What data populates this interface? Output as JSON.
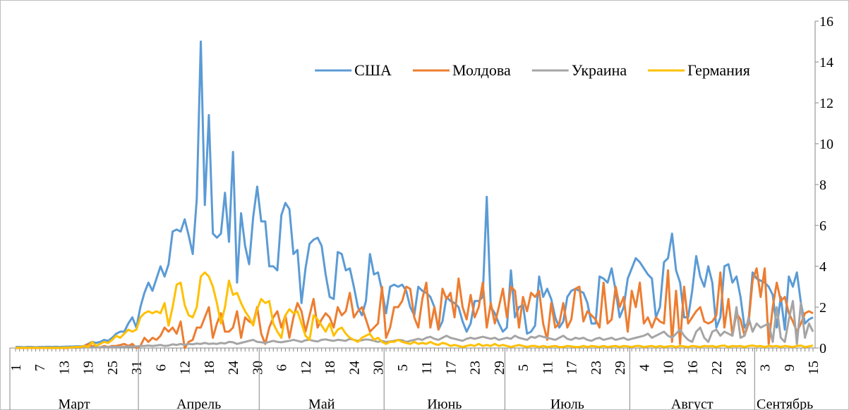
{
  "chart_data": {
    "type": "line",
    "months": [
      {
        "name": "Март",
        "days": [
          "1",
          null,
          null,
          null,
          null,
          null,
          "7",
          null,
          null,
          null,
          null,
          null,
          "13",
          null,
          null,
          null,
          null,
          null,
          "19",
          null,
          null,
          null,
          null,
          null,
          "25",
          null,
          null,
          null,
          null,
          null,
          "31"
        ]
      },
      {
        "name": "Апрель",
        "days": [
          null,
          null,
          null,
          null,
          null,
          "6",
          null,
          null,
          null,
          null,
          null,
          "12",
          null,
          null,
          null,
          null,
          null,
          "18",
          null,
          null,
          null,
          null,
          null,
          "24",
          null,
          null,
          null,
          null,
          null,
          "30"
        ]
      },
      {
        "name": "Май",
        "days": [
          null,
          null,
          null,
          null,
          null,
          "6",
          null,
          null,
          null,
          null,
          null,
          "12",
          null,
          null,
          null,
          null,
          null,
          "18",
          null,
          null,
          null,
          null,
          null,
          "24",
          null,
          null,
          null,
          null,
          null,
          "30",
          null
        ]
      },
      {
        "name": "Июнь",
        "days": [
          null,
          null,
          null,
          null,
          "5",
          null,
          null,
          null,
          null,
          null,
          "11",
          null,
          null,
          null,
          null,
          null,
          "17",
          null,
          null,
          null,
          null,
          null,
          "23",
          null,
          null,
          null,
          null,
          null,
          "29",
          null
        ]
      },
      {
        "name": "Июль",
        "days": [
          null,
          null,
          null,
          null,
          "5",
          null,
          null,
          null,
          null,
          null,
          "11",
          null,
          null,
          null,
          null,
          null,
          "17",
          null,
          null,
          null,
          null,
          null,
          "23",
          null,
          null,
          null,
          null,
          null,
          "29",
          null,
          null
        ]
      },
      {
        "name": "Август",
        "days": [
          null,
          null,
          null,
          "4",
          null,
          null,
          null,
          null,
          null,
          "10",
          null,
          null,
          null,
          null,
          null,
          "16",
          null,
          null,
          null,
          null,
          null,
          "22",
          null,
          null,
          null,
          null,
          null,
          "28",
          null,
          null,
          null
        ]
      },
      {
        "name": "Сентябрь",
        "days": [
          null,
          null,
          "3",
          null,
          null,
          null,
          null,
          null,
          "9",
          null,
          null,
          null,
          null,
          null,
          "15"
        ]
      }
    ],
    "series": [
      {
        "name": "США",
        "color": "#5b9bd5",
        "values": [
          0.05,
          0.05,
          0.04,
          0.05,
          0.05,
          0.04,
          0.05,
          0.05,
          0.06,
          0.05,
          0.06,
          0.05,
          0.06,
          0.07,
          0.07,
          0.08,
          0.08,
          0.1,
          0.2,
          0.3,
          0.25,
          0.3,
          0.4,
          0.35,
          0.5,
          0.7,
          0.8,
          0.8,
          1.2,
          1.5,
          1.0,
          2.0,
          2.7,
          3.2,
          2.8,
          3.4,
          4.0,
          3.5,
          4.1,
          5.7,
          5.8,
          5.7,
          6.3,
          5.5,
          4.6,
          7.3,
          15.0,
          7.0,
          11.4,
          5.6,
          5.4,
          5.6,
          7.6,
          5.2,
          9.6,
          3.2,
          6.6,
          5.0,
          4.1,
          6.4,
          7.9,
          6.2,
          6.2,
          4.0,
          4.0,
          3.8,
          6.5,
          7.1,
          6.8,
          4.6,
          4.8,
          2.2,
          3.9,
          5.1,
          5.3,
          5.4,
          5.0,
          3.6,
          2.5,
          2.4,
          4.7,
          4.6,
          3.8,
          3.9,
          3.0,
          2.0,
          1.6,
          2.3,
          4.6,
          3.6,
          3.7,
          2.8,
          1.7,
          3.0,
          3.1,
          3.0,
          3.1,
          2.8,
          2.0,
          1.6,
          3.0,
          2.8,
          2.7,
          2.5,
          2.0,
          0.9,
          1.3,
          2.5,
          2.3,
          2.2,
          2.0,
          1.3,
          0.8,
          1.2,
          2.3,
          2.3,
          2.5,
          7.4,
          2.0,
          1.7,
          1.2,
          0.8,
          1.0,
          3.8,
          1.5,
          2.0,
          2.1,
          0.7,
          0.8,
          1.1,
          3.5,
          2.5,
          2.9,
          2.4,
          1.5,
          1.0,
          1.3,
          2.5,
          2.8,
          2.9,
          2.8,
          2.7,
          2.2,
          1.2,
          1.2,
          3.5,
          3.4,
          3.2,
          3.9,
          2.8,
          1.5,
          2.0,
          3.4,
          3.9,
          4.4,
          4.2,
          3.9,
          3.6,
          3.4,
          1.5,
          2.0,
          4.2,
          4.4,
          5.6,
          3.8,
          3.2,
          1.5,
          1.5,
          2.8,
          4.5,
          3.5,
          3.0,
          4.0,
          3.2,
          1.0,
          1.5,
          4.0,
          4.1,
          3.2,
          3.5,
          2.5,
          1.0,
          1.3,
          3.7,
          3.4,
          3.3,
          3.2,
          3.0,
          2.6,
          1.0,
          2.5,
          0.9,
          3.5,
          3.0,
          3.7,
          2.2,
          1.2,
          1.4,
          1.5
        ]
      },
      {
        "name": "Молдова",
        "color": "#ed7d31",
        "values": [
          0,
          0,
          0,
          0,
          0.01,
          0,
          0,
          0.01,
          0,
          0,
          0,
          0.01,
          0,
          0,
          0.02,
          0.01,
          0.02,
          0.05,
          0.2,
          0.1,
          0.05,
          0.02,
          0.1,
          0.05,
          0.1,
          0.1,
          0.15,
          0.2,
          0.1,
          0.2,
          0.0,
          0.1,
          0.5,
          0.3,
          0.5,
          0.4,
          0.6,
          1.0,
          0.8,
          1.0,
          0.7,
          1.3,
          0.0,
          0.3,
          0.4,
          1.0,
          1.0,
          1.5,
          2.0,
          0.5,
          1.2,
          1.7,
          0.8,
          0.8,
          1.0,
          1.8,
          0.5,
          1.5,
          1.3,
          1.2,
          2.0,
          0.7,
          0.2,
          1.0,
          1.5,
          1.8,
          1.0,
          1.6,
          0.5,
          1.5,
          2.2,
          1.8,
          0.8,
          1.6,
          2.4,
          1.0,
          1.4,
          1.7,
          1.5,
          1.0,
          2.0,
          1.6,
          1.8,
          2.7,
          1.5,
          1.8,
          2.0,
          1.4,
          0.8,
          1.0,
          1.2,
          3.0,
          0.5,
          1.0,
          2.0,
          2.0,
          2.3,
          3.0,
          2.9,
          1.5,
          1.0,
          2.4,
          3.2,
          1.0,
          2.0,
          0.9,
          2.9,
          2.4,
          2.7,
          1.5,
          3.4,
          2.0,
          1.4,
          2.6,
          1.5,
          2.0,
          3.2,
          1.0,
          2.2,
          1.2,
          2.0,
          2.9,
          1.5,
          3.0,
          2.8,
          1.0,
          2.5,
          1.8,
          2.7,
          2.5,
          2.8,
          1.2,
          0.4,
          2.2,
          1.0,
          1.2,
          2.2,
          1.0,
          1.4,
          2.9,
          3.0,
          1.3,
          1.8,
          1.6,
          1.4,
          1.0,
          3.2,
          1.2,
          1.4,
          3.0,
          2.0,
          2.5,
          0.8,
          2.8,
          2.0,
          3.2,
          1.2,
          1.5,
          1.0,
          1.5,
          1.3,
          1.2,
          3.8,
          0.3,
          2.8,
          0.2,
          3.0,
          1.2,
          1.5,
          1.8,
          2.0,
          1.3,
          1.2,
          1.3,
          1.6,
          3.7,
          1.0,
          2.4,
          0.6,
          1.7,
          1.4,
          0.6,
          1.2,
          3.3,
          3.9,
          2.5,
          3.9,
          0.2,
          2.0,
          3.2,
          2.3,
          2.5,
          1.7,
          1.3,
          0.8,
          1.2,
          1.7,
          1.8,
          1.7
        ]
      },
      {
        "name": "Украина",
        "color": "#a5a5a5",
        "values": [
          0.02,
          0.02,
          0.02,
          0.02,
          0.02,
          0.02,
          0.02,
          0.02,
          0.02,
          0.02,
          0.02,
          0.02,
          0.02,
          0.02,
          0.02,
          0.02,
          0.02,
          0.03,
          0.03,
          0.03,
          0.03,
          0.04,
          0.04,
          0.05,
          0.05,
          0.05,
          0.06,
          0.06,
          0.07,
          0.07,
          0.08,
          0.1,
          0.1,
          0.12,
          0.1,
          0.12,
          0.15,
          0.1,
          0.12,
          0.18,
          0.15,
          0.2,
          0.15,
          0.2,
          0.18,
          0.22,
          0.2,
          0.25,
          0.2,
          0.22,
          0.2,
          0.25,
          0.22,
          0.3,
          0.28,
          0.2,
          0.25,
          0.3,
          0.35,
          0.4,
          0.3,
          0.28,
          0.25,
          0.3,
          0.35,
          0.3,
          0.28,
          0.32,
          0.35,
          0.4,
          0.35,
          0.3,
          0.38,
          0.4,
          0.35,
          0.32,
          0.4,
          0.42,
          0.38,
          0.35,
          0.4,
          0.38,
          0.35,
          0.45,
          0.4,
          0.35,
          0.38,
          0.42,
          0.4,
          0.35,
          0.3,
          0.35,
          0.3,
          0.32,
          0.35,
          0.4,
          0.38,
          0.3,
          0.35,
          0.4,
          0.45,
          0.4,
          0.5,
          0.55,
          0.45,
          0.4,
          0.5,
          0.6,
          0.5,
          0.45,
          0.4,
          0.35,
          0.45,
          0.5,
          0.45,
          0.5,
          0.55,
          0.5,
          0.45,
          0.5,
          0.4,
          0.45,
          0.5,
          0.45,
          0.6,
          0.5,
          0.45,
          0.4,
          0.55,
          0.5,
          0.6,
          0.55,
          0.5,
          0.45,
          0.4,
          0.5,
          0.6,
          0.45,
          0.4,
          0.5,
          0.45,
          0.5,
          0.4,
          0.35,
          0.45,
          0.5,
          0.4,
          0.45,
          0.5,
          0.4,
          0.45,
          0.5,
          0.4,
          0.45,
          0.5,
          0.55,
          0.6,
          0.7,
          0.5,
          0.6,
          0.7,
          0.8,
          0.6,
          0.5,
          0.7,
          0.9,
          0.6,
          0.4,
          0.3,
          0.8,
          1.0,
          0.5,
          0.3,
          0.8,
          0.9,
          0.6,
          0.8,
          0.7,
          0.6,
          2.0,
          0.5,
          0.6,
          1.5,
          0.8,
          1.2,
          1.0,
          1.1,
          1.2,
          0.3,
          2.0,
          0.5,
          0.3,
          1.4,
          2.3,
          0.2,
          2.2,
          0.5,
          1.2,
          0.8
        ]
      },
      {
        "name": "Германия",
        "color": "#ffc000",
        "values": [
          0.01,
          0.01,
          0.01,
          0.01,
          0.01,
          0.01,
          0.01,
          0.01,
          0.01,
          0.01,
          0.01,
          0.01,
          0.02,
          0.02,
          0.03,
          0.05,
          0.05,
          0.1,
          0.05,
          0.3,
          0.1,
          0.2,
          0.3,
          0.25,
          0.4,
          0.6,
          0.5,
          0.7,
          0.9,
          0.8,
          0.9,
          1.5,
          1.7,
          1.8,
          1.7,
          1.8,
          1.7,
          2.2,
          1.1,
          2.0,
          3.1,
          3.2,
          2.1,
          1.6,
          1.5,
          2.0,
          3.5,
          3.7,
          3.5,
          3.0,
          2.2,
          1.2,
          2.0,
          3.3,
          2.6,
          2.7,
          2.2,
          1.8,
          1.5,
          1.1,
          1.9,
          2.4,
          2.2,
          2.3,
          1.2,
          0.8,
          0.5,
          1.6,
          1.9,
          1.7,
          1.8,
          1.2,
          0.6,
          0.4,
          1.6,
          1.4,
          1.1,
          0.8,
          1.2,
          0.6,
          0.9,
          1.0,
          0.7,
          0.5,
          0.4,
          0.3,
          0.5,
          0.6,
          0.7,
          0.4,
          0.5,
          0.3,
          0.2,
          0.3,
          0.3,
          0.4,
          0.3,
          0.25,
          0.2,
          0.3,
          0.2,
          0.25,
          0.2,
          0.3,
          0.2,
          0.15,
          0.25,
          0.2,
          0.1,
          0.15,
          0.1,
          0.05,
          0.1,
          0.15,
          0.1,
          0.2,
          0.1,
          0.15,
          0.1,
          0.2,
          0.1,
          0.15,
          0.1,
          0.05,
          0.1,
          0.15,
          0.1,
          0.05,
          0.1,
          0.1,
          0.05,
          0.1,
          0.05,
          0.08,
          0.1,
          0.05,
          0.05,
          0.1,
          0.08,
          0.05,
          0.05,
          0.1,
          0.05,
          0.1,
          0.08,
          0.05,
          0.1,
          0.05,
          0.08,
          0.1,
          0.05,
          0.1,
          0.08,
          0.05,
          0.1,
          0.1,
          0.05,
          0.08,
          0.1,
          0.05,
          0.1,
          0.05,
          0.08,
          0.1,
          0.05,
          0.1,
          0.08,
          0.05,
          0.1,
          0.08,
          0.05,
          0.1,
          0.08,
          0.1,
          0.05,
          0.1,
          0.12,
          0.05,
          0.1,
          0.08,
          0.1,
          0.05,
          0.1,
          0.12,
          0.08,
          0.1,
          0.05,
          0.1,
          0.08,
          0.1,
          0.05,
          0.1,
          0.08,
          0.05,
          0.1,
          0.12,
          0.05,
          0.08,
          0.12
        ]
      }
    ],
    "ylim": [
      0,
      16
    ],
    "yticks": [
      0,
      2,
      4,
      6,
      8,
      10,
      12,
      14,
      16
    ],
    "legend": "top"
  }
}
